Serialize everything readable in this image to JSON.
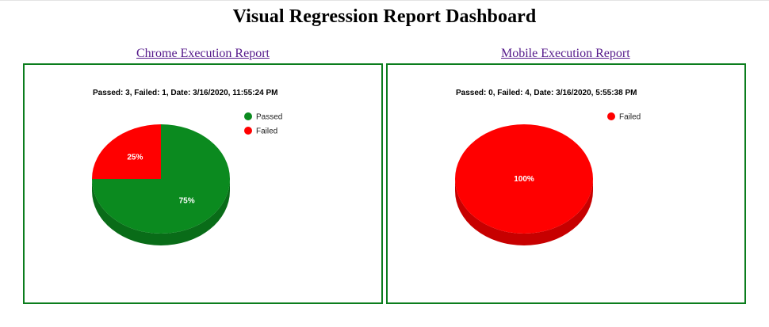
{
  "page": {
    "title": "Visual Regression Report Dashboard"
  },
  "colors": {
    "passed": "#0b8a1f",
    "failed": "#ff0000",
    "border": "#0b7d1d",
    "link": "#551a8b"
  },
  "links": {
    "chrome": "Chrome Execution Report",
    "mobile": "Mobile Execution Report"
  },
  "chart_data": [
    {
      "type": "pie",
      "variant": "3d",
      "title": "Passed: 3, Failed: 1, Date: 3/16/2020, 11:55:24 PM",
      "legend_position": "top-right",
      "categories": [
        "Passed",
        "Failed"
      ],
      "values": [
        3,
        1
      ],
      "labels": [
        "75%",
        "25%"
      ]
    },
    {
      "type": "pie",
      "variant": "3d",
      "title": "Passed: 0, Failed: 4, Date: 3/16/2020, 5:55:38 PM",
      "legend_position": "top-right",
      "categories": [
        "Failed"
      ],
      "values": [
        4
      ],
      "labels": [
        "100%"
      ]
    }
  ]
}
